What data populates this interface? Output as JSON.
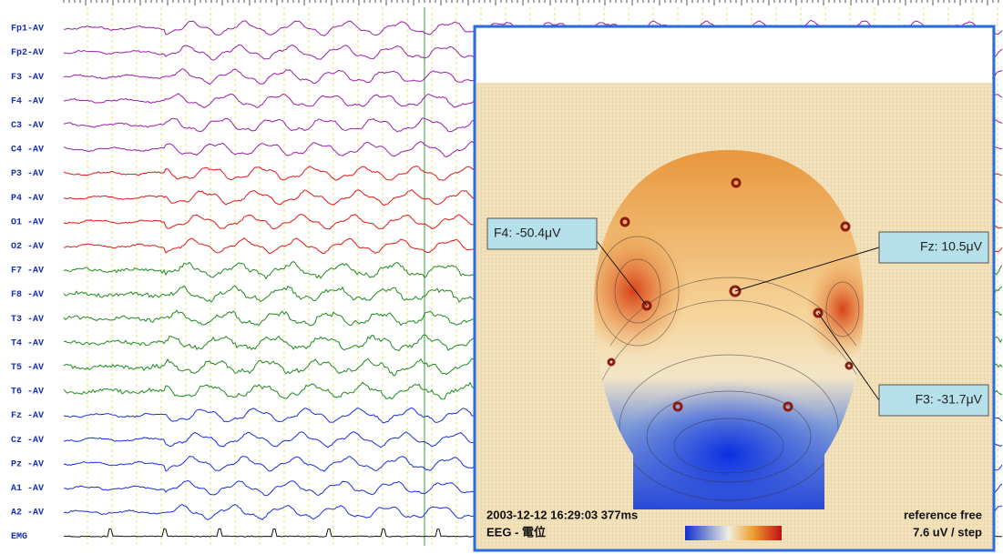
{
  "channels": [
    "Fp1-AV",
    "Fp2-AV",
    "F3 -AV",
    "F4 -AV",
    "C3 -AV",
    "C4 -AV",
    "P3 -AV",
    "P4 -AV",
    "O1 -AV",
    "O2 -AV",
    "F7 -AV",
    "F8 -AV",
    "T3 -AV",
    "T4 -AV",
    "T5 -AV",
    "T6 -AV",
    "Fz -AV",
    "Cz -AV",
    "Pz -AV",
    "A1 -AV",
    "A2 -AV",
    "EMG"
  ],
  "topomap": {
    "callouts": [
      "F4: -50.4μV",
      "Fz: 10.5μV",
      "F3: -31.7μV"
    ],
    "timestamp": "2003-12-12 16:29:03 377ms",
    "mode": "EEG - 電位",
    "reference": "reference free",
    "scale": "7.6 uV / step"
  }
}
